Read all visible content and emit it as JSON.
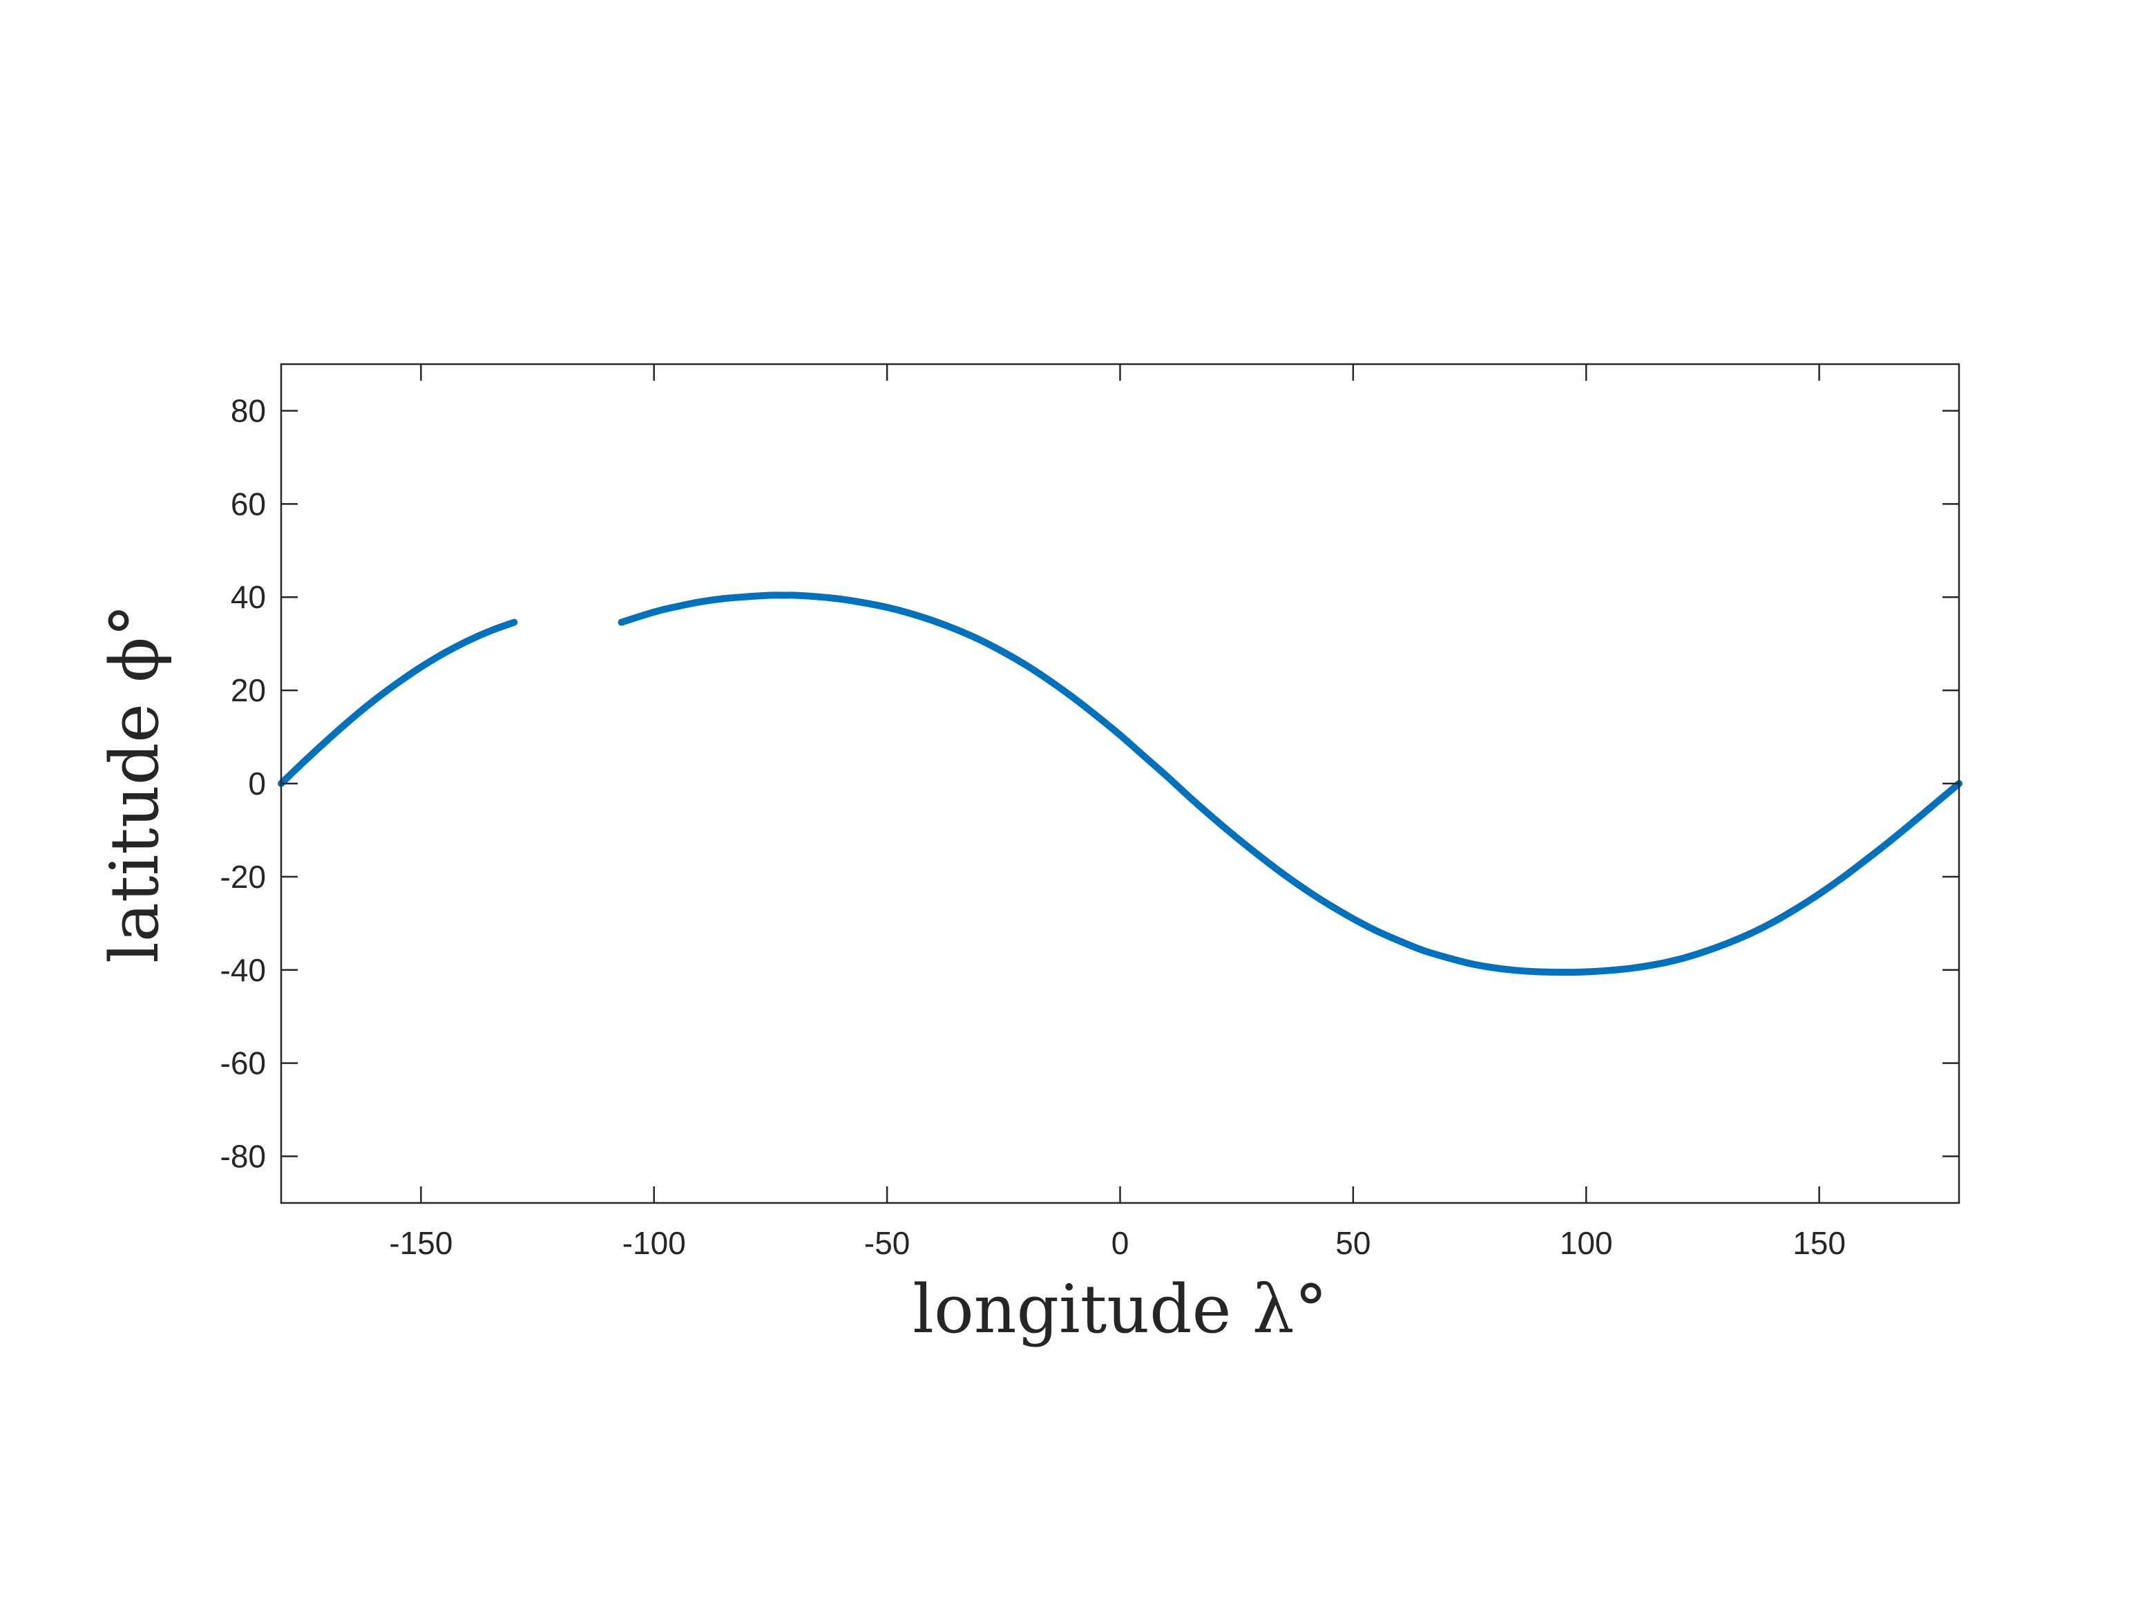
{
  "chart_data": {
    "type": "line",
    "title": "",
    "xlabel": "longitude λ°",
    "ylabel": "latitude ϕ°",
    "xlim": [
      -180,
      180
    ],
    "ylim": [
      -90,
      90
    ],
    "xticks": [
      -150,
      -100,
      -50,
      0,
      50,
      100,
      150
    ],
    "yticks": [
      -80,
      -60,
      -40,
      -20,
      0,
      20,
      40,
      60,
      80
    ],
    "xtick_labels": [
      "-150",
      "-100",
      "-50",
      "0",
      "50",
      "100",
      "150"
    ],
    "ytick_labels": [
      "-80",
      "-60",
      "-40",
      "-20",
      "0",
      "20",
      "40",
      "60",
      "80"
    ],
    "grid": false,
    "legend": false,
    "series": [
      {
        "color": "#0072BD",
        "segments": [
          {
            "x": [
              -180,
              -175,
              -170,
              -165,
              -160,
              -155,
              -150,
              -145,
              -140,
              -135,
              -130
            ],
            "y": [
              0,
              4.8,
              9.4,
              13.8,
              17.9,
              21.6,
              25.0,
              28.0,
              30.6,
              32.8,
              34.6
            ]
          },
          {
            "x": [
              -107,
              -100,
              -95,
              -90,
              -85,
              -80,
              -75,
              -72,
              -70,
              -65,
              -60,
              -55,
              -50,
              -45,
              -40,
              -35,
              -30,
              -25,
              -20,
              -15,
              -10,
              -5,
              0,
              5,
              10,
              15,
              20,
              25,
              30,
              35,
              40,
              45,
              50,
              55,
              60,
              65,
              70,
              75,
              80,
              85,
              90,
              96,
              100,
              105,
              110,
              115,
              120,
              125,
              130,
              135,
              140,
              145,
              150,
              155,
              160,
              165,
              170,
              175,
              180
            ],
            "y": [
              34.6,
              36.8,
              38.0,
              39.0,
              39.7,
              40.1,
              40.4,
              40.4,
              40.4,
              40.1,
              39.6,
              38.8,
              37.8,
              36.5,
              34.9,
              33.0,
              30.8,
              28.2,
              25.3,
              22.0,
              18.4,
              14.5,
              10.4,
              6.0,
              1.6,
              -3.0,
              -7.4,
              -11.6,
              -15.6,
              -19.4,
              -22.9,
              -26.1,
              -29.0,
              -31.6,
              -33.8,
              -35.8,
              -37.3,
              -38.6,
              -39.5,
              -40.1,
              -40.4,
              -40.5,
              -40.4,
              -40.1,
              -39.6,
              -38.8,
              -37.7,
              -36.2,
              -34.4,
              -32.3,
              -29.8,
              -26.9,
              -23.7,
              -20.2,
              -16.4,
              -12.5,
              -8.4,
              -4.2,
              0
            ]
          }
        ]
      }
    ]
  }
}
